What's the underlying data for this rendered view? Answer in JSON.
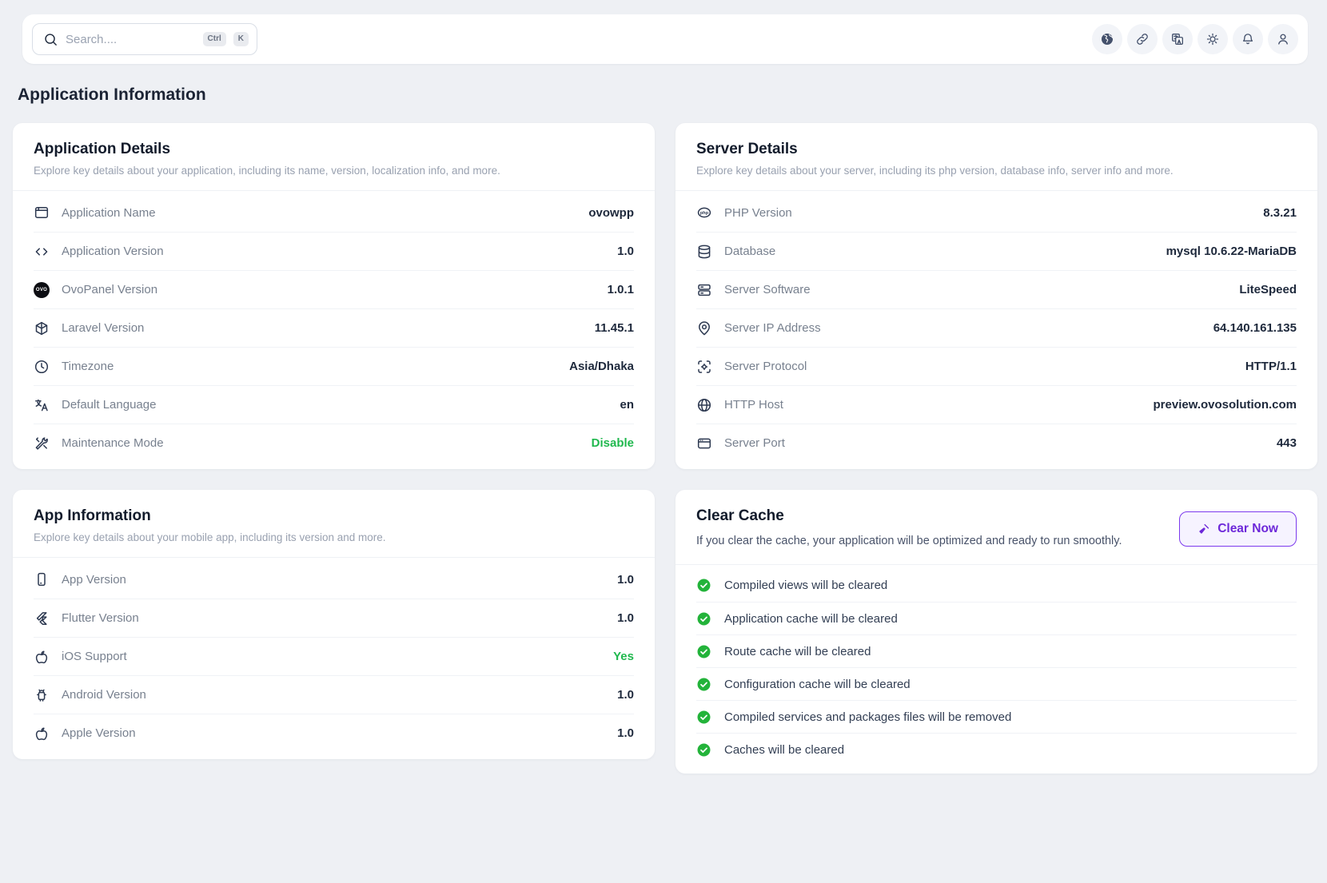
{
  "header": {
    "search": {
      "placeholder": "Search....",
      "keys": [
        "Ctrl",
        "K"
      ]
    },
    "actions": [
      {
        "name": "language-button",
        "icon": "globe-filled-icon"
      },
      {
        "name": "quick-links-button",
        "icon": "link-icon"
      },
      {
        "name": "translate-button",
        "icon": "translate-docs-icon"
      },
      {
        "name": "theme-toggle-button",
        "icon": "sun-icon"
      },
      {
        "name": "notifications-button",
        "icon": "bell-icon"
      },
      {
        "name": "profile-button",
        "icon": "user-icon"
      }
    ]
  },
  "page_title": "Application Information",
  "cards": {
    "application_details": {
      "title": "Application Details",
      "subtitle": "Explore key details about your application, including its name, version, localization info, and more.",
      "rows": [
        {
          "icon": "window-icon",
          "label": "Application Name",
          "value": "ovowpp"
        },
        {
          "icon": "code-icon",
          "label": "Application Version",
          "value": "1.0"
        },
        {
          "icon": "ovo-badge-icon",
          "label": "OvoPanel Version",
          "value": "1.0.1"
        },
        {
          "icon": "laravel-icon",
          "label": "Laravel Version",
          "value": "11.45.1"
        },
        {
          "icon": "clock-icon",
          "label": "Timezone",
          "value": "Asia/Dhaka"
        },
        {
          "icon": "translate-icon",
          "label": "Default Language",
          "value": "en"
        },
        {
          "icon": "tools-icon",
          "label": "Maintenance Mode",
          "value": "Disable",
          "tone": "green"
        }
      ]
    },
    "server_details": {
      "title": "Server Details",
      "subtitle": "Explore key details about your server, including its php version, database info, server info and more.",
      "rows": [
        {
          "icon": "php-badge-icon",
          "label": "PHP Version",
          "value": "8.3.21"
        },
        {
          "icon": "database-icon",
          "label": "Database",
          "value": "mysql 10.6.22-MariaDB"
        },
        {
          "icon": "server-icon",
          "label": "Server Software",
          "value": "LiteSpeed"
        },
        {
          "icon": "pin-icon",
          "label": "Server IP Address",
          "value": "64.140.161.135"
        },
        {
          "icon": "protocol-icon",
          "label": "Server Protocol",
          "value": "HTTP/1.1"
        },
        {
          "icon": "globe-icon",
          "label": "HTTP Host",
          "value": "preview.ovosolution.com"
        },
        {
          "icon": "port-icon",
          "label": "Server Port",
          "value": "443"
        }
      ]
    },
    "app_information": {
      "title": "App Information",
      "subtitle": "Explore key details about your mobile app, including its version and more.",
      "rows": [
        {
          "icon": "smartphone-icon",
          "label": "App Version",
          "value": "1.0"
        },
        {
          "icon": "flutter-icon",
          "label": "Flutter Version",
          "value": "1.0"
        },
        {
          "icon": "apple-icon",
          "label": "iOS Support",
          "value": "Yes",
          "tone": "green"
        },
        {
          "icon": "android-icon",
          "label": "Android Version",
          "value": "1.0"
        },
        {
          "icon": "apple-icon",
          "label": "Apple Version",
          "value": "1.0"
        }
      ]
    },
    "clear_cache": {
      "title": "Clear Cache",
      "description": "If you clear the cache, your application will be optimized and ready to run smoothly.",
      "button_label": "Clear Now",
      "items": [
        {
          "icon": "check-icon",
          "label": "Compiled views will be cleared"
        },
        {
          "icon": "check-icon",
          "label": "Application cache will be cleared"
        },
        {
          "icon": "check-icon",
          "label": "Route cache will be cleared"
        },
        {
          "icon": "check-icon",
          "label": "Configuration cache will be cleared"
        },
        {
          "icon": "check-icon",
          "label": "Compiled services and packages files will be removed"
        },
        {
          "icon": "check-icon",
          "label": "Caches will be cleared"
        }
      ]
    }
  },
  "colors": {
    "accent": "#7c3aed",
    "success": "#20b84e",
    "page_bg": "#eef0f4"
  }
}
